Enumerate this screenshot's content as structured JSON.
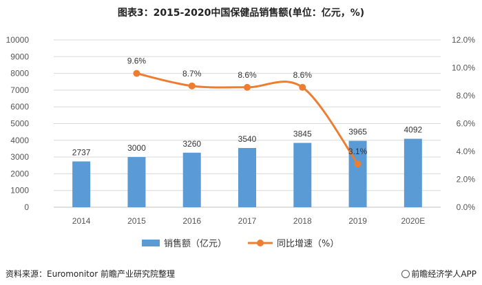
{
  "title": "图表3：2015-2020中国保健品销售额(单位：亿元，%)",
  "source": "资料来源：Euromonitor 前瞻产业研究院整理",
  "brand": "前瞻经济学人APP",
  "chart_data": {
    "type": "bar+line",
    "categories": [
      "2014",
      "2015",
      "2016",
      "2017",
      "2018",
      "2019",
      "2020E"
    ],
    "series": [
      {
        "name": "销售额（亿元）",
        "type": "bar",
        "axis": "left",
        "values": [
          2737,
          3000,
          3260,
          3540,
          3845,
          3965,
          4092
        ],
        "labels": [
          "2737",
          "3000",
          "3260",
          "3540",
          "3845",
          "3965",
          "4092"
        ],
        "color": "#5B9BD5"
      },
      {
        "name": "同比增速（%）",
        "type": "line",
        "axis": "right",
        "values": [
          null,
          9.6,
          8.7,
          8.6,
          8.6,
          3.1,
          null
        ],
        "labels": [
          null,
          "9.6%",
          "8.7%",
          "8.6%",
          "8.6%",
          "3.1%",
          null
        ],
        "color": "#ED7D31"
      }
    ],
    "y_left": {
      "min": 0,
      "max": 10000,
      "step": 1000,
      "ticks": [
        "0",
        "1000",
        "2000",
        "3000",
        "4000",
        "5000",
        "6000",
        "7000",
        "8000",
        "9000",
        "10000"
      ]
    },
    "y_right": {
      "min": 0,
      "max": 12,
      "step": 2,
      "ticks": [
        "0.0%",
        "2.0%",
        "4.0%",
        "6.0%",
        "8.0%",
        "10.0%",
        "12.0%"
      ]
    },
    "grid": true,
    "legend": "bottom-center"
  }
}
